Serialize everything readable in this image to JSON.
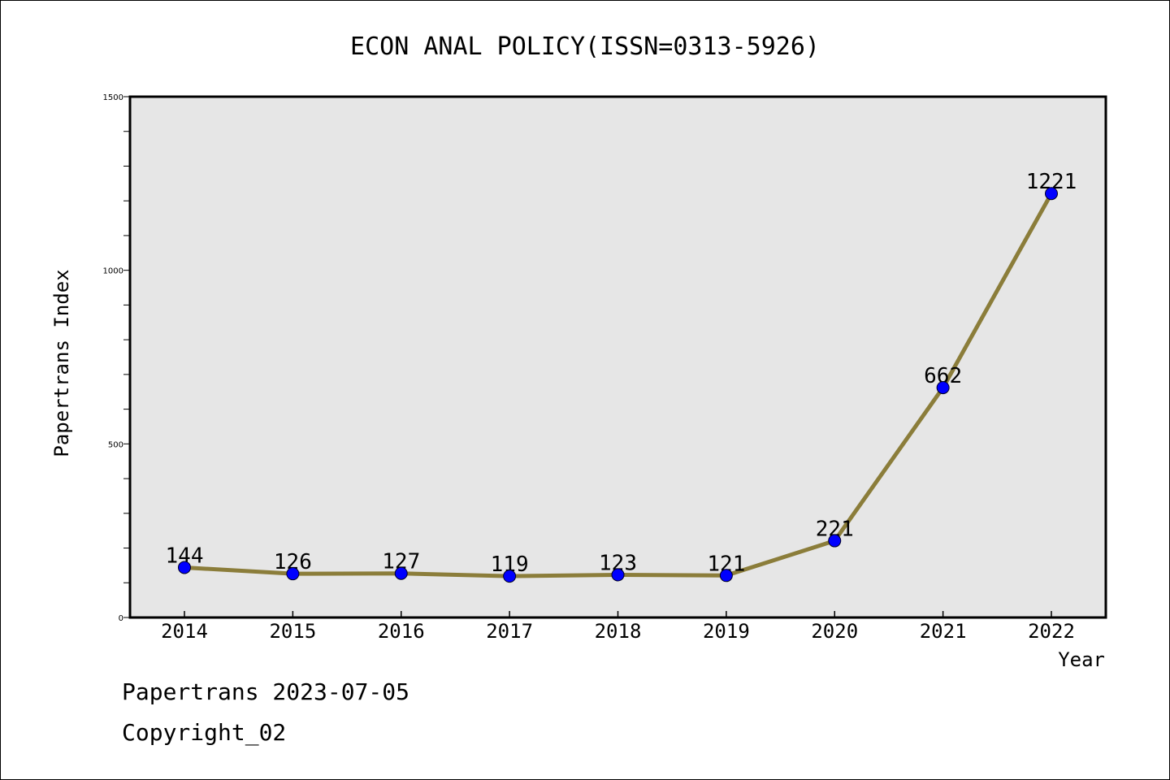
{
  "chart_data": {
    "type": "line",
    "title": "ECON ANAL POLICY(ISSN=0313-5926)",
    "xlabel": "Year",
    "ylabel": "Papertrans Index",
    "categories": [
      "2014",
      "2015",
      "2016",
      "2017",
      "2018",
      "2019",
      "2020",
      "2021",
      "2022"
    ],
    "series": [
      {
        "values": [
          144,
          126,
          127,
          119,
          123,
          121,
          221,
          662,
          1221
        ]
      }
    ],
    "data_labels": [
      "144",
      "126",
      "127",
      "119",
      "123",
      "121",
      "221",
      "662",
      "1221"
    ],
    "ylim": [
      0,
      1500
    ],
    "y_ticks": [
      "0",
      "500",
      "1000",
      "1500"
    ],
    "grid": false,
    "colors": {
      "line": "#8B7D3A",
      "marker": "#0000FF",
      "plot_background": "#E6E6E6"
    }
  },
  "footer": {
    "line1": "Papertrans 2023-07-05",
    "line2": "Copyright_02"
  }
}
